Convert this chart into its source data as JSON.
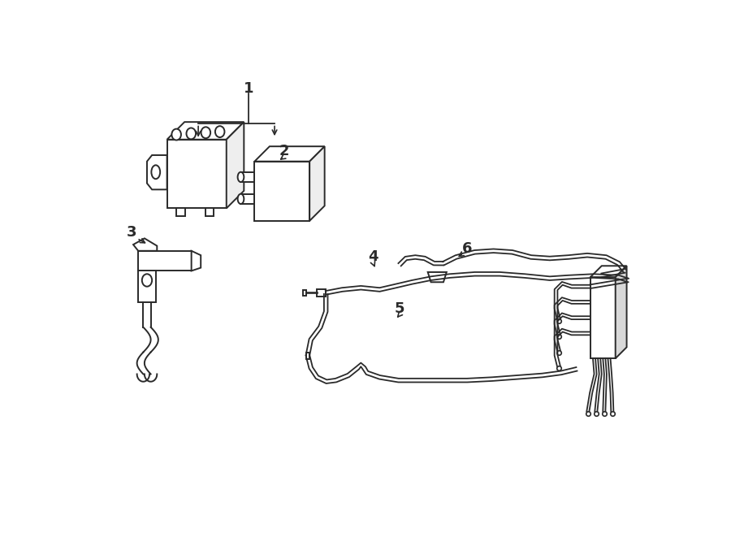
{
  "background_color": "#ffffff",
  "line_color": "#2a2a2a",
  "figsize": [
    9.0,
    6.61
  ],
  "dpi": 100
}
